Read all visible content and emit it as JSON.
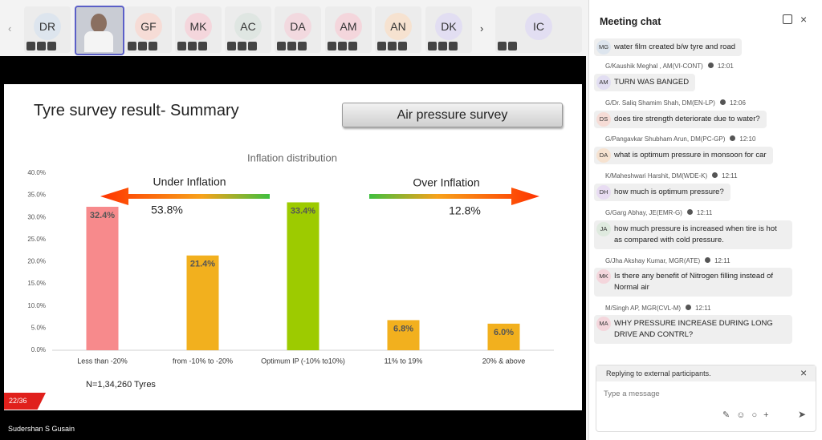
{
  "participants": [
    {
      "initials": "DR",
      "color": "#dde5ee"
    },
    {
      "initials": "GF",
      "color": "#f6dcd6"
    },
    {
      "initials": "MK",
      "color": "#f4d6dc"
    },
    {
      "initials": "AC",
      "color": "#dfe6e2"
    },
    {
      "initials": "DA",
      "color": "#f2d9df"
    },
    {
      "initials": "AM",
      "color": "#f4d6dc"
    },
    {
      "initials": "AN",
      "color": "#f6e2d0"
    },
    {
      "initials": "DK",
      "color": "#e2def2"
    },
    {
      "initials": "IC",
      "color": "#e2def2"
    }
  ],
  "slide": {
    "title": "Tyre survey result- Summary",
    "button": "Air pressure survey",
    "counter": "22/36",
    "presenter": "Sudershan S Gusain"
  },
  "chart_data": {
    "type": "bar",
    "title": "Inflation distribution",
    "categories": [
      "Less than -20%",
      "from -10% to -20%",
      "Optimum IP (-10% to10%)",
      "11% to 19%",
      "20% & above"
    ],
    "values": [
      32.4,
      21.4,
      33.4,
      6.8,
      6.0
    ],
    "value_labels": [
      "32.4%",
      "21.4%",
      "33.4%",
      "6.8%",
      "6.0%"
    ],
    "colors": [
      "#f78a8c",
      "#f2b01e",
      "#9dcb00",
      "#f2b01e",
      "#f2b01e"
    ],
    "ylim": [
      0,
      40
    ],
    "yticks": [
      {
        "value": 0,
        "label": "0.0%"
      },
      {
        "value": 5,
        "label": "5.0%"
      },
      {
        "value": 10,
        "label": "10.0%"
      },
      {
        "value": 15,
        "label": "15.0%"
      },
      {
        "value": 20,
        "label": "20.0%"
      },
      {
        "value": 25,
        "label": "25.0%"
      },
      {
        "value": 30,
        "label": "30.0%"
      },
      {
        "value": 35,
        "label": "35.0%"
      },
      {
        "value": 40,
        "label": "40.0%"
      }
    ],
    "grid": false,
    "annotations": [
      "Under Inflation",
      "53.8%",
      "Over Inflation",
      "12.8%",
      "N=1,34,260 Tyres"
    ]
  },
  "chat": {
    "title": "Meeting chat",
    "messages": [
      {
        "initials": "MG",
        "text": "water film created b/w tyre and road"
      },
      {
        "sender": "G/Kaushik Meghal , AM(VI-CONT)",
        "time": "12:01",
        "initials": "AM",
        "text": "TURN WAS BANGED"
      },
      {
        "sender": "G/Dr. Saliq Shamim Shah, DM(EN-LP)",
        "time": "12:06",
        "initials": "DS",
        "text": "does tire strength deteriorate due to water?"
      },
      {
        "sender": "G/Pangavkar Shubham Arun, DM(PC-GP)",
        "time": "12:10",
        "initials": "DA",
        "text": "what is optimum pressure in monsoon for car"
      },
      {
        "sender": "K/Maheshwari Harshit, DM(WDE-K)",
        "time": "12:11",
        "initials": "DH",
        "text": "how much is optimum pressure?"
      },
      {
        "sender": "G/Garg Abhay, JE(EMR-G)",
        "time": "12:11",
        "initials": "JA",
        "text": "how much pressure is increased when tire is hot as compared with cold pressure."
      },
      {
        "sender": "G/Jha Akshay Kumar, MGR(ATE)",
        "time": "12:11",
        "initials": "MK",
        "text": "Is there any benefit of Nitrogen filling instead of Normal  air"
      },
      {
        "sender": "M/Singh AP, MGR(CVL-M)",
        "time": "12:11",
        "initials": "MA",
        "text": "WHY PRESSURE INCREASE DURING LONG DRIVE AND CONTRL?"
      }
    ],
    "reply_notice": "Replying to external participants.",
    "placeholder": "Type a message"
  }
}
